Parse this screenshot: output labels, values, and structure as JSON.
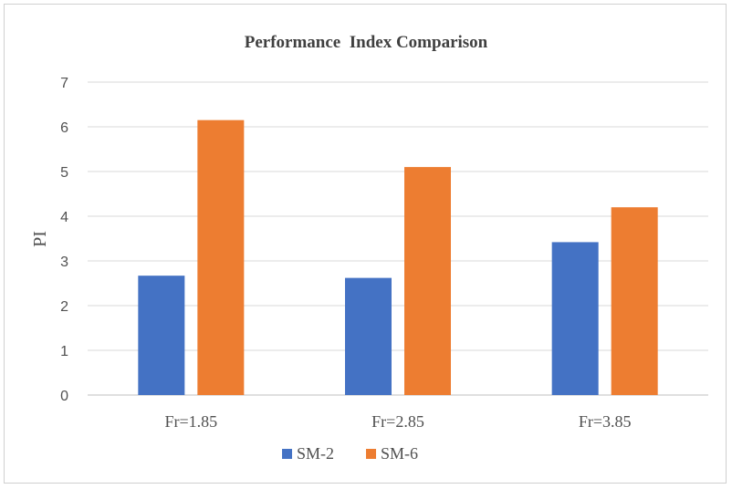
{
  "chart_data": {
    "type": "bar",
    "title": "Performance  Index Comparison",
    "xlabel": "",
    "ylabel": "PI",
    "categories": [
      "Fr=1.85",
      "Fr=2.85",
      "Fr=3.85"
    ],
    "series": [
      {
        "name": "SM-2",
        "color": "#4472c4",
        "values": [
          2.67,
          2.62,
          3.42
        ]
      },
      {
        "name": "SM-6",
        "color": "#ed7d31",
        "values": [
          6.15,
          5.1,
          4.2
        ]
      }
    ],
    "ylim": [
      0,
      7
    ],
    "yticks": [
      0,
      1,
      2,
      3,
      4,
      5,
      6,
      7
    ],
    "grid": true,
    "legend_position": "bottom"
  }
}
